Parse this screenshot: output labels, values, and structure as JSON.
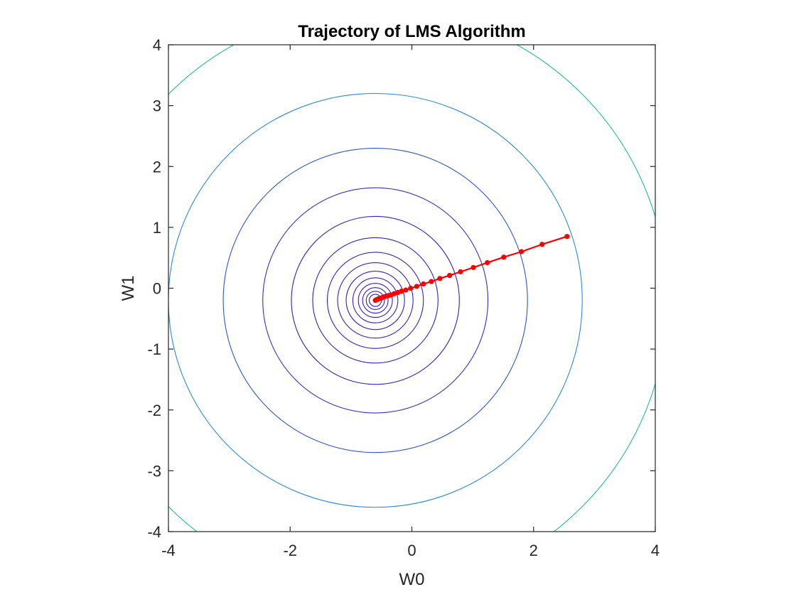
{
  "chart_data": {
    "type": "line",
    "title": "Trajectory of LMS Algorithm",
    "xlabel": "W0",
    "ylabel": "W1",
    "xlim": [
      -4,
      4
    ],
    "ylim": [
      -4,
      4
    ],
    "xticks": [
      "-4",
      "-2",
      "0",
      "2",
      "4"
    ],
    "yticks": [
      "4",
      "3",
      "2",
      "1",
      "0",
      "-1",
      "-2",
      "-3",
      "-4"
    ],
    "xtick_values": [
      -4,
      -2,
      0,
      2,
      4
    ],
    "ytick_values": [
      4,
      3,
      2,
      1,
      0,
      -1,
      -2,
      -3,
      -4
    ],
    "grid": false,
    "contour_center": [
      -0.6,
      -0.2
    ],
    "contour_levels": [
      {
        "radius": 0.1,
        "color": "#3a1fc0"
      },
      {
        "radius": 0.15,
        "color": "#3a1fc0"
      },
      {
        "radius": 0.21,
        "color": "#3a1fc0"
      },
      {
        "radius": 0.28,
        "color": "#3a1fc0"
      },
      {
        "radius": 0.37,
        "color": "#3a1fc0"
      },
      {
        "radius": 0.48,
        "color": "#3a1fc0"
      },
      {
        "radius": 0.62,
        "color": "#3a1fc0"
      },
      {
        "radius": 0.79,
        "color": "#3a1fc0"
      },
      {
        "radius": 1.03,
        "color": "#3a1fc0"
      },
      {
        "radius": 1.38,
        "color": "#3a1fc0"
      },
      {
        "radius": 1.85,
        "color": "#3432cc"
      },
      {
        "radius": 2.5,
        "color": "#2e55d4"
      },
      {
        "radius": 3.4,
        "color": "#2b8ade"
      },
      {
        "radius": 4.8,
        "color": "#22bb9c"
      }
    ],
    "series": [
      {
        "color": "#ff0000",
        "x": [
          2.55,
          2.14,
          1.8,
          1.51,
          1.24,
          1.01,
          0.8,
          0.62,
          0.46,
          0.32,
          0.19,
          0.08,
          -0.02,
          -0.1,
          -0.17,
          -0.23,
          -0.29,
          -0.34,
          -0.38,
          -0.42,
          -0.45,
          -0.48,
          -0.5,
          -0.52,
          -0.54,
          -0.55,
          -0.56,
          -0.57,
          -0.58,
          -0.59,
          -0.6
        ],
        "y": [
          0.85,
          0.72,
          0.6,
          0.51,
          0.42,
          0.34,
          0.27,
          0.21,
          0.16,
          0.11,
          0.07,
          0.03,
          0.0,
          -0.03,
          -0.05,
          -0.07,
          -0.09,
          -0.11,
          -0.12,
          -0.13,
          -0.14,
          -0.15,
          -0.16,
          -0.165,
          -0.17,
          -0.175,
          -0.18,
          -0.185,
          -0.19,
          -0.195,
          -0.2
        ]
      }
    ]
  }
}
